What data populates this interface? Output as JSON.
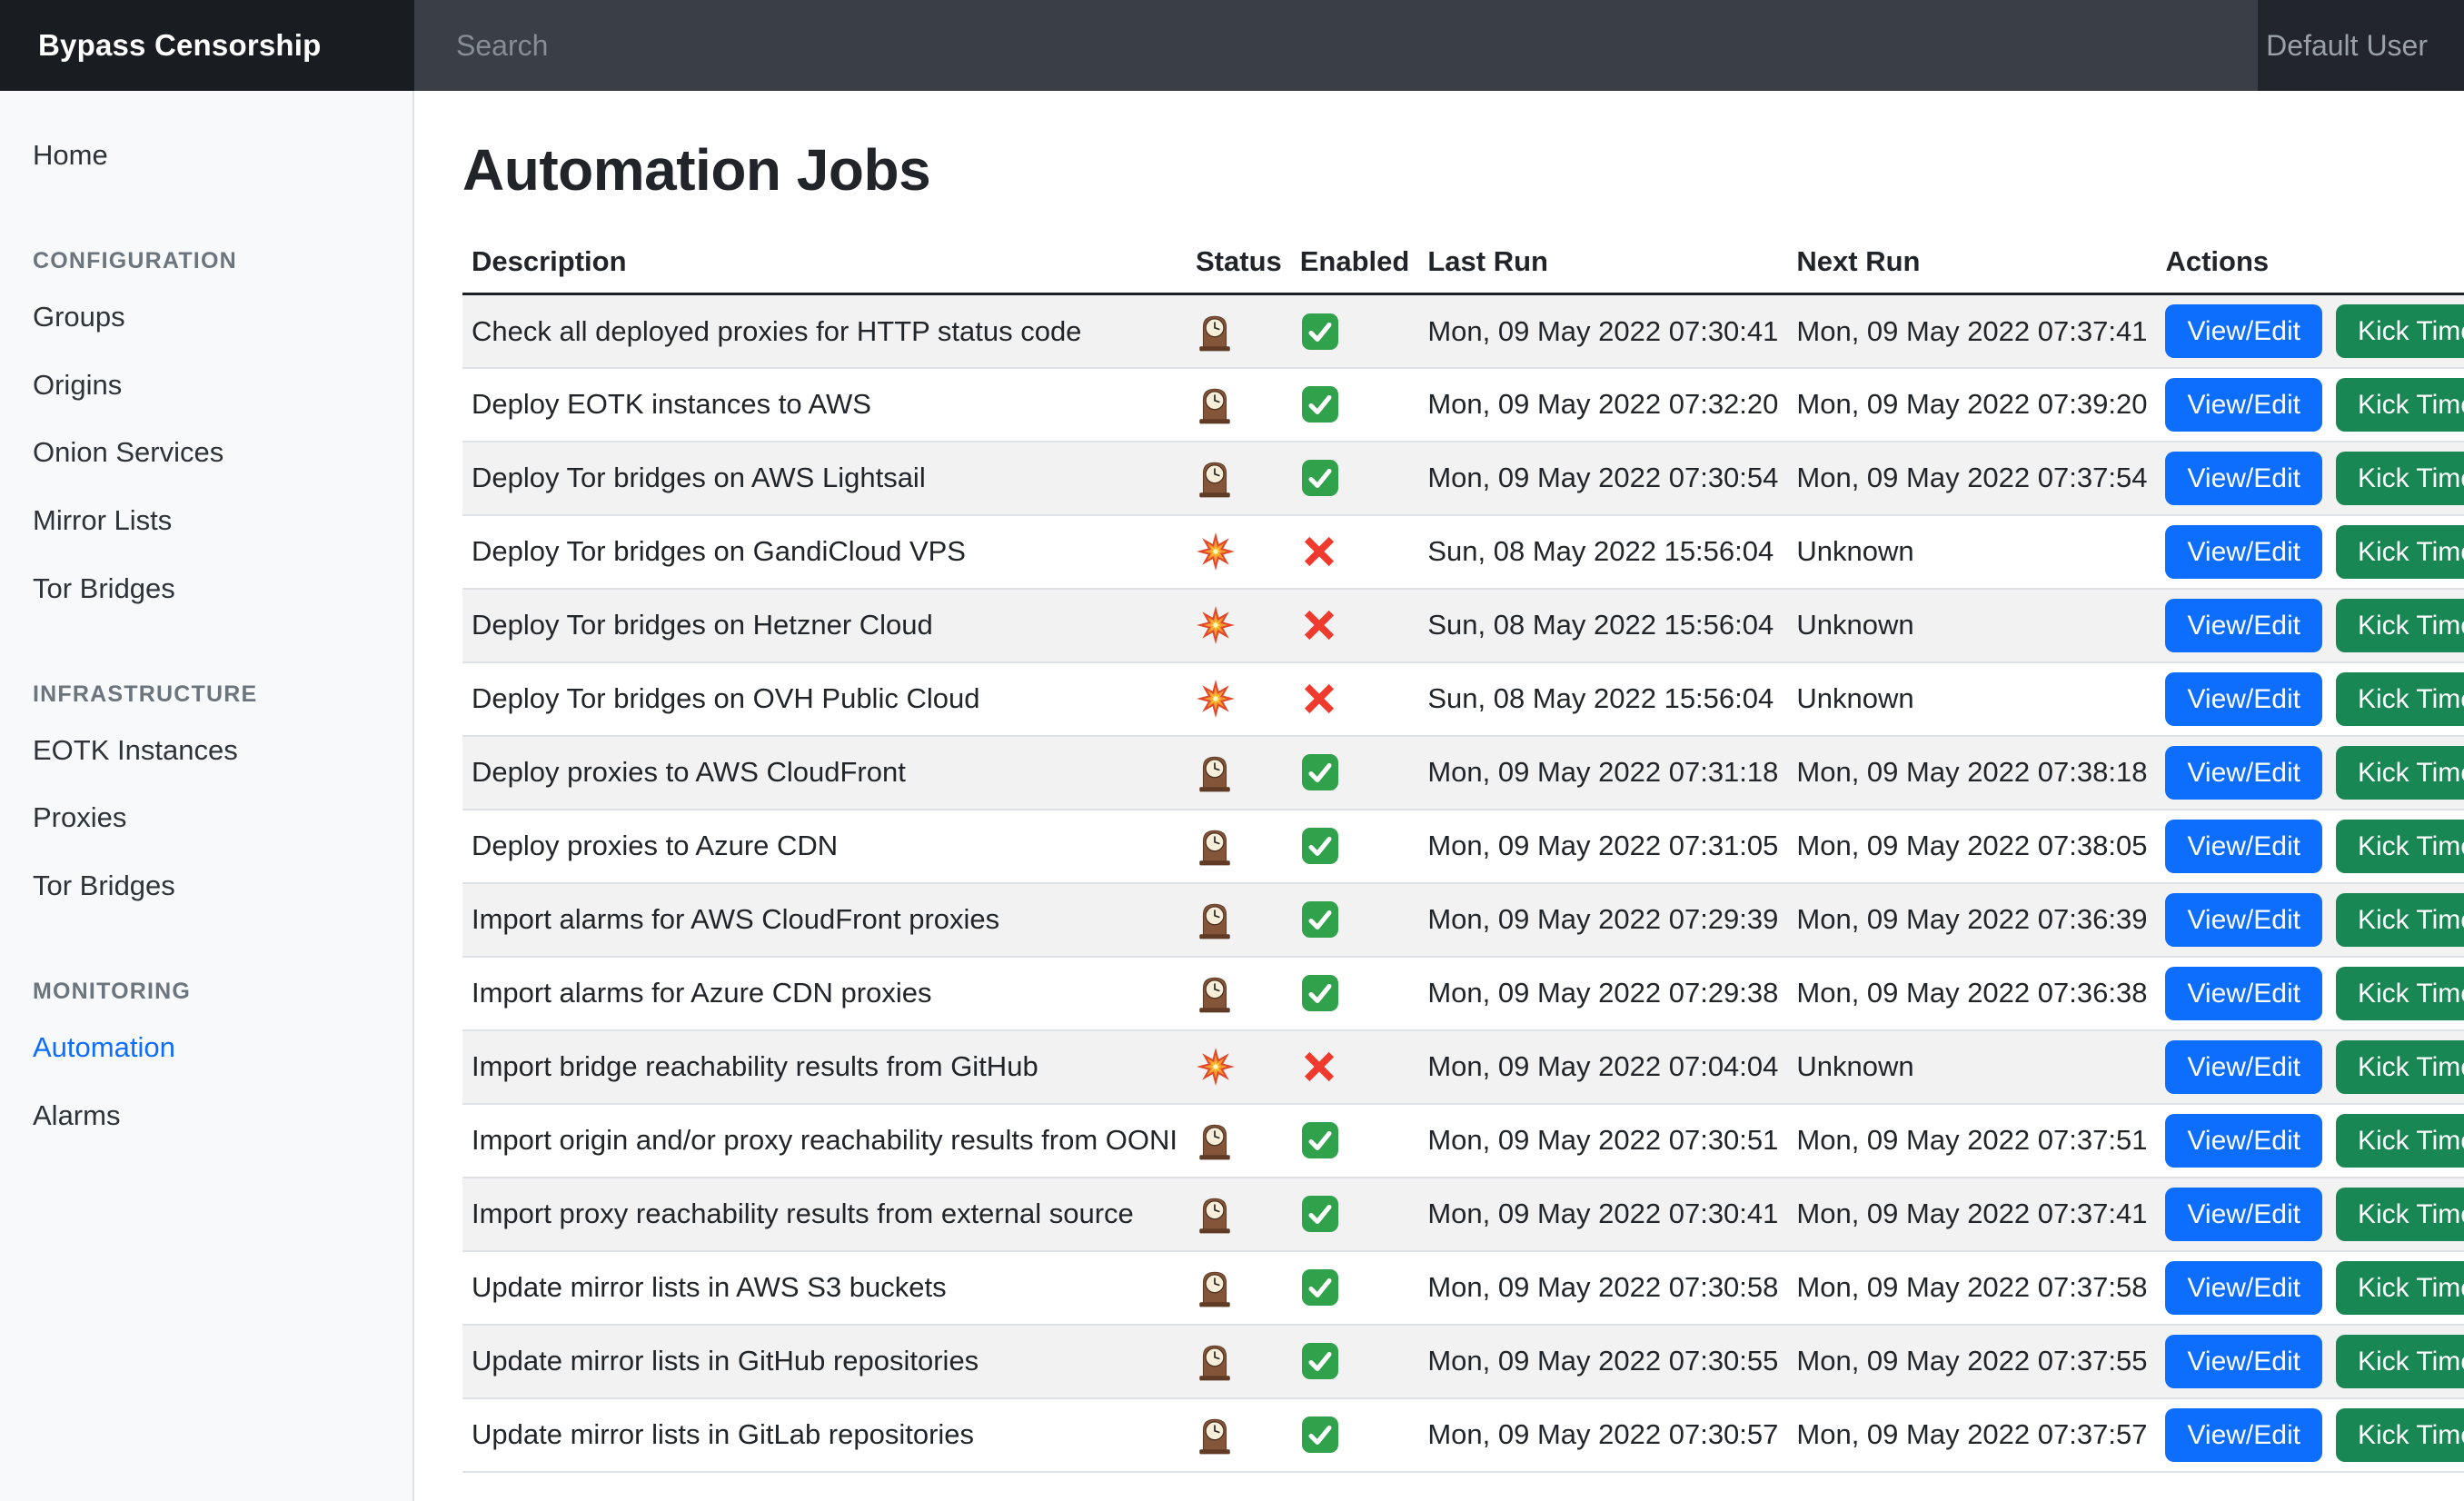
{
  "navbar": {
    "brand": "Bypass Censorship",
    "search_placeholder": "Search",
    "user": "Default User"
  },
  "sidebar": {
    "sections": [
      {
        "heading": null,
        "items": [
          {
            "label": "Home",
            "active": false
          }
        ]
      },
      {
        "heading": "CONFIGURATION",
        "items": [
          {
            "label": "Groups",
            "active": false
          },
          {
            "label": "Origins",
            "active": false
          },
          {
            "label": "Onion Services",
            "active": false
          },
          {
            "label": "Mirror Lists",
            "active": false
          },
          {
            "label": "Tor Bridges",
            "active": false
          }
        ]
      },
      {
        "heading": "INFRASTRUCTURE",
        "items": [
          {
            "label": "EOTK Instances",
            "active": false
          },
          {
            "label": "Proxies",
            "active": false
          },
          {
            "label": "Tor Bridges",
            "active": false
          }
        ]
      },
      {
        "heading": "MONITORING",
        "items": [
          {
            "label": "Automation",
            "active": true
          },
          {
            "label": "Alarms",
            "active": false
          }
        ]
      }
    ]
  },
  "main": {
    "title": "Automation Jobs",
    "table": {
      "columns": [
        "Description",
        "Status",
        "Enabled",
        "Last Run",
        "Next Run",
        "Actions"
      ],
      "action_labels": {
        "view_edit": "View/Edit",
        "kick_timer": "Kick Timer"
      },
      "status_icons": {
        "ok": "mantel-clock-icon",
        "error": "collision-icon"
      },
      "enabled_icons": {
        "true": "check-mark-icon",
        "false": "cross-mark-icon"
      },
      "rows": [
        {
          "description": "Check all deployed proxies for HTTP status code",
          "status": "ok",
          "enabled": true,
          "last_run": "Mon, 09 May 2022 07:30:41",
          "next_run": "Mon, 09 May 2022 07:37:41"
        },
        {
          "description": "Deploy EOTK instances to AWS",
          "status": "ok",
          "enabled": true,
          "last_run": "Mon, 09 May 2022 07:32:20",
          "next_run": "Mon, 09 May 2022 07:39:20"
        },
        {
          "description": "Deploy Tor bridges on AWS Lightsail",
          "status": "ok",
          "enabled": true,
          "last_run": "Mon, 09 May 2022 07:30:54",
          "next_run": "Mon, 09 May 2022 07:37:54"
        },
        {
          "description": "Deploy Tor bridges on GandiCloud VPS",
          "status": "error",
          "enabled": false,
          "last_run": "Sun, 08 May 2022 15:56:04",
          "next_run": "Unknown"
        },
        {
          "description": "Deploy Tor bridges on Hetzner Cloud",
          "status": "error",
          "enabled": false,
          "last_run": "Sun, 08 May 2022 15:56:04",
          "next_run": "Unknown"
        },
        {
          "description": "Deploy Tor bridges on OVH Public Cloud",
          "status": "error",
          "enabled": false,
          "last_run": "Sun, 08 May 2022 15:56:04",
          "next_run": "Unknown"
        },
        {
          "description": "Deploy proxies to AWS CloudFront",
          "status": "ok",
          "enabled": true,
          "last_run": "Mon, 09 May 2022 07:31:18",
          "next_run": "Mon, 09 May 2022 07:38:18"
        },
        {
          "description": "Deploy proxies to Azure CDN",
          "status": "ok",
          "enabled": true,
          "last_run": "Mon, 09 May 2022 07:31:05",
          "next_run": "Mon, 09 May 2022 07:38:05"
        },
        {
          "description": "Import alarms for AWS CloudFront proxies",
          "status": "ok",
          "enabled": true,
          "last_run": "Mon, 09 May 2022 07:29:39",
          "next_run": "Mon, 09 May 2022 07:36:39"
        },
        {
          "description": "Import alarms for Azure CDN proxies",
          "status": "ok",
          "enabled": true,
          "last_run": "Mon, 09 May 2022 07:29:38",
          "next_run": "Mon, 09 May 2022 07:36:38"
        },
        {
          "description": "Import bridge reachability results from GitHub",
          "status": "error",
          "enabled": false,
          "last_run": "Mon, 09 May 2022 07:04:04",
          "next_run": "Unknown"
        },
        {
          "description": "Import origin and/or proxy reachability results from OONI",
          "status": "ok",
          "enabled": true,
          "last_run": "Mon, 09 May 2022 07:30:51",
          "next_run": "Mon, 09 May 2022 07:37:51"
        },
        {
          "description": "Import proxy reachability results from external source",
          "status": "ok",
          "enabled": true,
          "last_run": "Mon, 09 May 2022 07:30:41",
          "next_run": "Mon, 09 May 2022 07:37:41"
        },
        {
          "description": "Update mirror lists in AWS S3 buckets",
          "status": "ok",
          "enabled": true,
          "last_run": "Mon, 09 May 2022 07:30:58",
          "next_run": "Mon, 09 May 2022 07:37:58"
        },
        {
          "description": "Update mirror lists in GitHub repositories",
          "status": "ok",
          "enabled": true,
          "last_run": "Mon, 09 May 2022 07:30:55",
          "next_run": "Mon, 09 May 2022 07:37:55"
        },
        {
          "description": "Update mirror lists in GitLab repositories",
          "status": "ok",
          "enabled": true,
          "last_run": "Mon, 09 May 2022 07:30:57",
          "next_run": "Mon, 09 May 2022 07:37:57"
        }
      ]
    }
  },
  "colors": {
    "accent_primary": "#0d6efd",
    "accent_success": "#198754",
    "enabled_green": "#31a24c",
    "disabled_red": "#f03a2d"
  }
}
